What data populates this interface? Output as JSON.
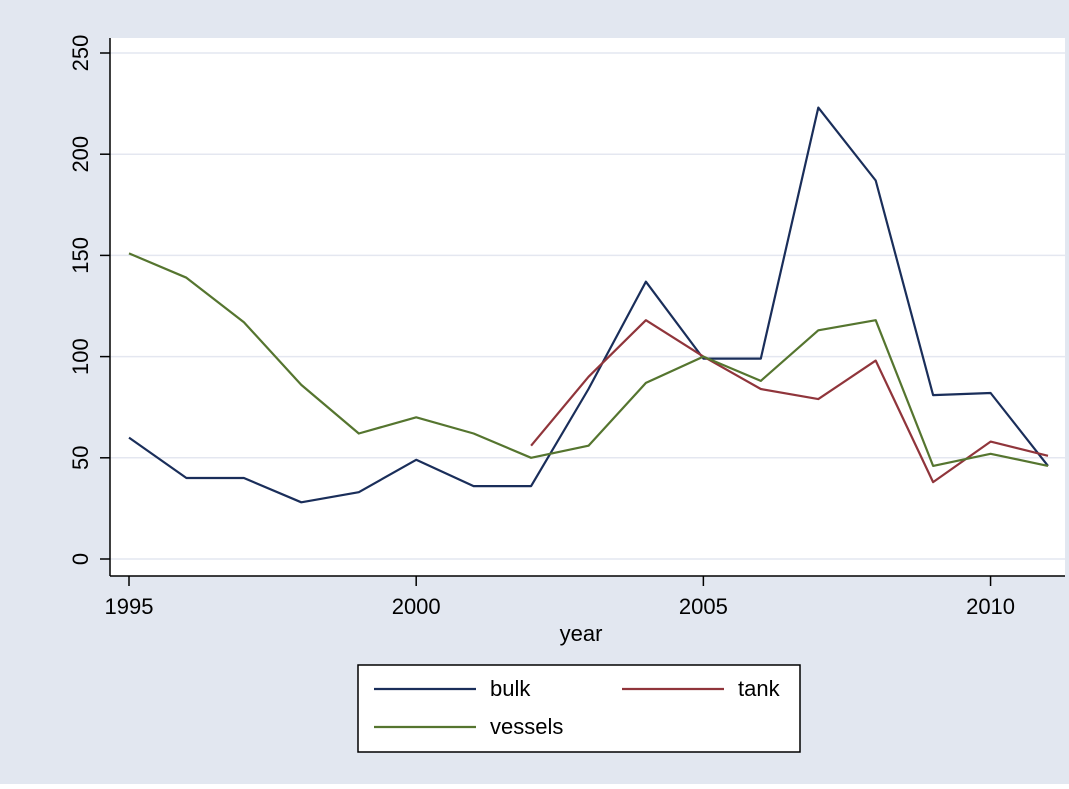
{
  "chart_data": {
    "type": "line",
    "xlabel": "year",
    "ylabel": "",
    "xlim": [
      1995,
      2011
    ],
    "ylim": [
      0,
      250
    ],
    "x_ticks": [
      "1995",
      "2000",
      "2005",
      "2010"
    ],
    "y_ticks": [
      "0",
      "50",
      "100",
      "150",
      "200",
      "250"
    ],
    "grid": true,
    "legend_position": "bottom",
    "x": [
      1995,
      1996,
      1997,
      1998,
      1999,
      2000,
      2001,
      2002,
      2003,
      2004,
      2005,
      2006,
      2007,
      2008,
      2009,
      2010,
      2011
    ],
    "series": [
      {
        "name": "bulk",
        "color": "#1a2e5a",
        "values": [
          60,
          40,
          40,
          28,
          33,
          49,
          36,
          36,
          84,
          137,
          99,
          99,
          223,
          187,
          81,
          82,
          46
        ]
      },
      {
        "name": "tank",
        "color": "#90353b",
        "values": [
          null,
          null,
          null,
          null,
          null,
          null,
          null,
          56,
          90,
          118,
          100,
          84,
          79,
          98,
          38,
          58,
          51
        ]
      },
      {
        "name": "vessels",
        "color": "#55752f",
        "values": [
          151,
          139,
          117,
          86,
          62,
          70,
          62,
          50,
          56,
          87,
          100,
          88,
          113,
          118,
          46,
          52,
          46
        ]
      }
    ],
    "colors": {
      "outer_background": "#e2e7f0",
      "plot_background": "#ffffff",
      "grid": "#e4e7f0"
    }
  }
}
